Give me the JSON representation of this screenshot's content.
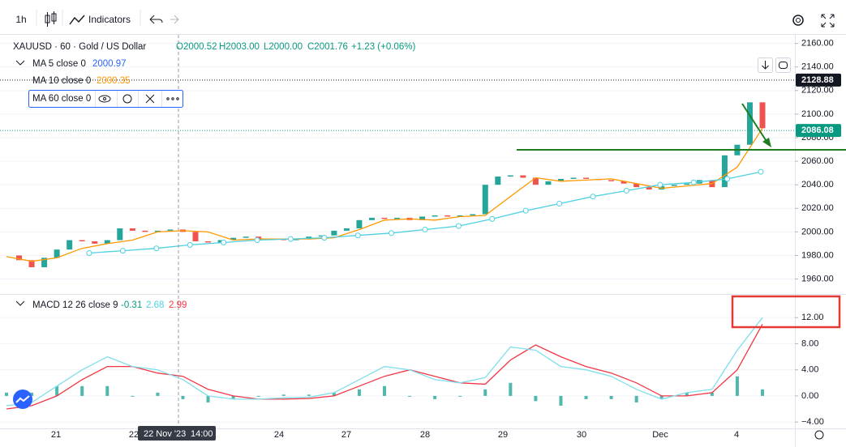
{
  "toolbar": {
    "interval": "1h",
    "indicators": "Indicators"
  },
  "legend": {
    "symbol": "XAUUSD · 60 · Gold / US Dollar",
    "open": "O2000.52",
    "high": "H2003.00",
    "low": "L2000.00",
    "close": "C2001.76",
    "change": "+1.23 (+0.06%)",
    "ma5": {
      "name": "MA 5 close 0",
      "value": "2000.97"
    },
    "ma10": {
      "name": "MA 10 close 0",
      "value": "2000.35"
    },
    "ma60": {
      "name": "MA 60 close 0"
    },
    "macd": {
      "name": "MACD 12 26 close 9",
      "histogram": "-0.31",
      "macd": "2.68",
      "signal": "2.99"
    }
  },
  "price_pane": {
    "ylim": [
      1948,
      2168
    ],
    "yticks": [
      {
        "value": 1960,
        "label": "1960.00"
      },
      {
        "value": 1980,
        "label": "1980.00"
      },
      {
        "value": 2000,
        "label": "2000.00"
      },
      {
        "value": 2020,
        "label": "2020.00"
      },
      {
        "value": 2040,
        "label": "2040.00"
      },
      {
        "value": 2060,
        "label": "2060.00"
      },
      {
        "value": 2080,
        "label": "2080.00"
      },
      {
        "value": 2100,
        "label": "2100.00"
      },
      {
        "value": 2120,
        "label": "2120.00"
      },
      {
        "value": 2140,
        "label": "2140.00"
      },
      {
        "value": 2160,
        "label": "2160.00"
      }
    ],
    "high_line": {
      "value": 2128.88,
      "label": "2128.88"
    },
    "last_price": {
      "value": 2086.08,
      "label": "2086.08"
    },
    "closes": [
      1980,
      1976,
      1970,
      1978,
      1985,
      1993,
      1992,
      1990,
      1993,
      2003,
      2001,
      2000,
      2001,
      2002,
      2000,
      1992,
      1991,
      1993,
      1995,
      1996,
      1993,
      1994,
      1993,
      1994,
      1996,
      1997,
      2001,
      2003,
      2010,
      2012,
      2011,
      2012,
      2010,
      2013,
      2014,
      2013,
      2014,
      2015,
      2040,
      2047,
      2048,
      2046,
      2040,
      2043,
      2045,
      2046,
      2045,
      2044,
      2043,
      2041,
      2038,
      2036,
      2039,
      2040,
      2041,
      2044,
      2038,
      2065,
      2074,
      2110,
      2088
    ],
    "up_color": "#26a69a",
    "down_color": "#ef5350",
    "ma10": {
      "color": "#ff9800",
      "values": [
        1979,
        1975,
        1978,
        1986,
        1990,
        1993,
        2000,
        2001,
        2000,
        1993,
        1994,
        1994,
        1994,
        1995,
        2002,
        2010,
        2011,
        2010,
        2013,
        2014,
        2030,
        2046,
        2043,
        2044,
        2045,
        2041,
        2037,
        2039,
        2041,
        2055,
        2088
      ]
    },
    "ma60": {
      "color": "#4dd0e1",
      "values": [
        1982,
        1984,
        1986,
        1989,
        1991,
        1993,
        1994,
        1995,
        1997,
        1999,
        2002,
        2005,
        2011,
        2018,
        2024,
        2030,
        2035,
        2040,
        2042,
        2045,
        2051
      ]
    }
  },
  "macd_pane": {
    "ylim": [
      -5.1,
      15.5
    ],
    "yticks": [
      {
        "value": -4,
        "label": "−4.00"
      },
      {
        "value": 0,
        "label": "0.00"
      },
      {
        "value": 4,
        "label": "4.00"
      },
      {
        "value": 8,
        "label": "8.00"
      },
      {
        "value": 12,
        "label": "12.00"
      }
    ],
    "macd": {
      "color": "#80deea",
      "values": [
        -1.5,
        -1,
        1.5,
        4,
        6,
        4.5,
        4,
        2.5,
        0,
        -0.5,
        -0.5,
        -0.3,
        -0.2,
        0.5,
        2.5,
        4.5,
        4,
        2.5,
        2,
        2.8,
        7.5,
        7,
        4.5,
        4,
        3,
        1,
        -0.5,
        0.5,
        1,
        7,
        12
      ]
    },
    "signal": {
      "color": "#f23645",
      "values": [
        -2,
        -1.5,
        0,
        2.5,
        4.5,
        4.5,
        3.5,
        3,
        1,
        0,
        -0.5,
        -0.5,
        -0.4,
        0,
        1.5,
        3,
        4,
        3,
        2,
        1.8,
        5.5,
        7.8,
        6,
        4.5,
        3.5,
        2,
        0,
        0,
        0.5,
        4,
        11
      ]
    },
    "histogram": {
      "color": "#26a69a",
      "values": [
        0.5,
        0.5,
        1.5,
        1.5,
        1.5,
        0,
        0.5,
        -0.5,
        -1,
        -0.5,
        0,
        0.2,
        0.2,
        0.5,
        1,
        1.5,
        0,
        -0.5,
        0,
        1,
        2,
        -0.8,
        -1.5,
        -0.5,
        -0.5,
        -1,
        -0.5,
        0.5,
        0.5,
        3,
        1
      ]
    }
  },
  "time_axis": {
    "labels": [
      "21",
      "22",
      "24",
      "27",
      "28",
      "29",
      "30",
      "Dec",
      "4"
    ],
    "crosshair": "22 Nov '23",
    "crosshair_time": "14:00"
  }
}
